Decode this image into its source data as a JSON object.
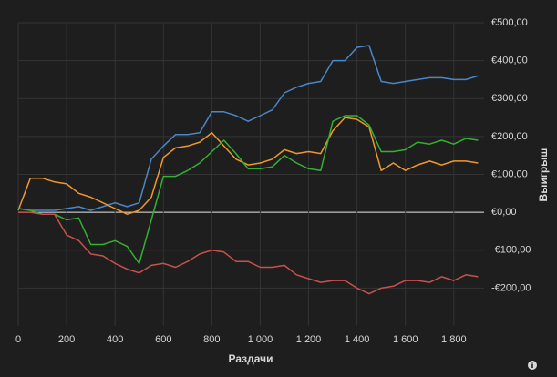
{
  "chart_data": {
    "type": "line",
    "x_label": "Раздачи",
    "y_label": "Выигрыш",
    "x": [
      0,
      50,
      100,
      150,
      200,
      250,
      300,
      350,
      400,
      450,
      500,
      550,
      600,
      650,
      700,
      750,
      800,
      850,
      900,
      950,
      1000,
      1050,
      1100,
      1150,
      1200,
      1250,
      1300,
      1350,
      1400,
      1450,
      1500,
      1550,
      1600,
      1650,
      1700,
      1750,
      1800,
      1850,
      1900
    ],
    "series": [
      {
        "color": "#4a86c8",
        "values": [
          10,
          5,
          5,
          5,
          10,
          15,
          5,
          15,
          25,
          15,
          25,
          140,
          175,
          205,
          205,
          210,
          265,
          265,
          255,
          240,
          255,
          270,
          315,
          330,
          340,
          345,
          400,
          400,
          435,
          440,
          345,
          340,
          345,
          350,
          355,
          355,
          350,
          350,
          360
        ]
      },
      {
        "color": "#f0962e",
        "values": [
          5,
          90,
          90,
          80,
          75,
          50,
          40,
          25,
          10,
          -5,
          5,
          40,
          145,
          170,
          175,
          185,
          210,
          175,
          140,
          125,
          130,
          140,
          165,
          155,
          160,
          155,
          215,
          250,
          245,
          225,
          110,
          130,
          110,
          125,
          135,
          125,
          135,
          135,
          130
        ]
      },
      {
        "color": "#34b033",
        "values": [
          10,
          5,
          -5,
          -5,
          -20,
          -15,
          -85,
          -85,
          -75,
          -90,
          -135,
          -20,
          95,
          95,
          110,
          130,
          160,
          190,
          155,
          115,
          115,
          120,
          150,
          130,
          115,
          110,
          240,
          255,
          255,
          230,
          160,
          160,
          165,
          185,
          180,
          190,
          180,
          195,
          190
        ]
      },
      {
        "color": "#c9504d",
        "values": [
          0,
          0,
          -5,
          -5,
          -60,
          -75,
          -110,
          -115,
          -135,
          -150,
          -160,
          -140,
          -135,
          -145,
          -130,
          -110,
          -100,
          -105,
          -130,
          -130,
          -145,
          -145,
          -140,
          -165,
          -175,
          -185,
          -180,
          -180,
          -200,
          -215,
          -200,
          -195,
          -180,
          -180,
          -185,
          -170,
          -180,
          -165,
          -170
        ]
      }
    ],
    "xlim": [
      0,
      1925
    ],
    "xticks": [
      0,
      200,
      400,
      600,
      800,
      {
        "value": 1000,
        "label": "1 000"
      },
      {
        "value": 1200,
        "label": "1 200"
      },
      {
        "value": 1400,
        "label": "1 400"
      },
      {
        "value": 1600,
        "label": "1 600"
      },
      {
        "value": 1800,
        "label": "1 800"
      }
    ],
    "ylim": [
      -300,
      500
    ],
    "yticks": [
      {
        "value": 500,
        "label": "€500,00"
      },
      {
        "value": 400,
        "label": "€400,00"
      },
      {
        "value": 300,
        "label": "€300,00"
      },
      {
        "value": 200,
        "label": "€200,00"
      },
      {
        "value": 100,
        "label": "€100,00"
      },
      {
        "value": 0,
        "label": "€0,00"
      },
      {
        "value": -100,
        "label": "-€100,00"
      },
      {
        "value": -200,
        "label": "-€200,00"
      }
    ],
    "grid": true
  }
}
